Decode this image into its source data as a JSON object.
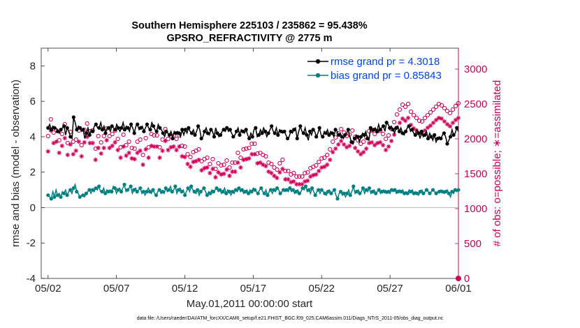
{
  "chart_data": {
    "type": "line",
    "title": "Southern Hemisphere 225103 / 235862 = 95.438%",
    "subtitle": "GPSRO_REFRACTIVITY @ 2775 m",
    "xlabel": "May.01,2011 00:00:00 start",
    "ylabel_left": "rmse and bias (model - observation)",
    "ylabel_right": "# of obs: o=possible; ∗=assimilated",
    "footnote": "data file: /Users/raeder/DAI/ATM_forcXX/CAM6_setup/f.e21.FHIST_BGC.f09_025.CAM6assim.011/Diags_NTrS_2011-05/obs_diag_output.nc",
    "x_ticks": [
      "05/02",
      "05/07",
      "05/12",
      "05/17",
      "05/22",
      "05/27",
      "06/01"
    ],
    "x_tick_days": [
      1,
      6,
      11,
      16,
      21,
      26,
      31
    ],
    "x_range_days": [
      0.5,
      31
    ],
    "ylim_left": [
      -4,
      9
    ],
    "y_ticks_left": [
      "-4",
      "-2",
      "0",
      "2",
      "4",
      "6",
      "8"
    ],
    "ylim_right": [
      0,
      3300
    ],
    "y_ticks_right": [
      "0",
      "500",
      "1000",
      "1500",
      "2000",
      "2500",
      "3000"
    ],
    "zero_line": 0,
    "legend_position": "top-right",
    "colors": {
      "rmse": "#000000",
      "bias": "#008080",
      "counts": "#cc0055",
      "legend_text": "#0044ee",
      "zero_line": "#c0c0c0"
    },
    "series": [
      {
        "name": "rmse grand pr = 4.3018",
        "axis": "left",
        "marker": "filled-circle",
        "values": [
          4.5,
          4.7,
          4.4,
          4.6,
          4.5,
          4.5,
          4.3,
          4.2,
          4.4,
          4.5,
          4.6,
          4.1,
          4.5,
          4.3,
          4.0,
          3.9,
          5.1,
          4.8,
          4.4,
          4.6,
          4.5,
          4.3,
          4.4,
          3.9,
          4.2,
          4.5,
          4.1,
          4.4,
          4.3,
          4.6,
          4.7,
          4.5,
          4.5,
          4.8,
          4.4,
          4.6,
          4.2,
          4.5,
          4.5,
          4.3,
          4.6,
          4.5,
          4.4,
          4.7,
          4.5,
          4.3,
          4.5,
          4.8,
          4.4,
          4.6,
          4.5,
          4.3,
          4.7,
          4.5,
          4.2,
          4.6,
          4.7,
          4.4,
          4.5,
          4.6,
          4.3,
          4.5,
          4.7,
          4.5,
          4.4,
          4.8,
          4.6,
          4.4,
          4.3,
          4.7,
          4.5,
          4.4,
          4.2,
          4.0,
          4.3,
          4.2,
          4.1,
          4.3,
          3.9,
          4.3,
          4.2,
          4.3,
          4.2,
          4.0,
          4.4,
          4.1,
          4.4,
          4.2,
          4.5,
          4.3,
          4.2,
          4.4,
          4.1,
          4.3,
          4.6,
          4.4,
          3.9,
          4.0,
          4.3,
          4.5,
          4.2,
          4.1,
          4.4,
          4.3,
          4.0,
          4.5,
          4.2,
          4.0,
          4.1,
          4.3,
          4.4,
          4.3,
          4.5,
          4.3,
          4.4,
          4.2,
          4.0,
          4.1,
          4.3,
          4.5,
          4.1,
          4.4,
          4.3,
          4.2,
          4.4,
          4.1,
          3.9,
          4.2,
          4.0,
          4.4,
          4.5,
          4.0,
          4.1,
          4.4,
          4.2,
          4.5,
          4.3,
          4.0,
          4.2,
          4.4,
          4.6,
          4.3,
          4.2,
          4.5,
          4.1,
          4.4,
          4.3,
          4.2,
          4.3,
          4.1,
          3.9,
          4.0,
          4.3,
          4.2,
          4.4,
          4.5,
          3.9,
          4.3,
          4.6,
          4.3,
          4.2,
          4.5,
          4.1,
          3.8,
          4.3,
          4.1,
          4.4,
          4.3,
          4.0,
          4.2,
          4.5,
          4.1,
          4.0,
          4.3,
          4.2,
          4.4,
          4.1,
          4.3,
          4.2,
          4.0,
          4.4,
          4.3,
          4.1,
          4.2,
          4.0,
          3.9,
          4.1,
          4.2,
          4.4,
          4.0,
          3.7,
          3.6,
          3.9,
          4.1,
          4.0,
          3.7,
          4.0,
          4.2,
          4.1,
          4.3,
          3.9,
          3.8,
          4.5,
          4.3,
          4.4,
          4.5,
          4.3,
          4.7,
          4.4,
          4.5,
          4.6,
          4.3,
          4.8,
          4.7,
          4.5,
          4.6,
          4.4,
          4.2,
          4.5,
          4.6,
          4.3,
          4.5,
          4.2,
          4.1,
          4.3,
          4.5,
          4.6,
          4.3,
          4.4,
          4.2,
          4.1,
          4.4,
          4.2,
          3.9,
          4.3,
          4.0,
          4.1,
          4.3,
          3.9,
          4.2,
          4.0,
          3.8,
          4.1,
          3.7,
          3.9,
          4.0,
          3.9,
          4.1,
          4.2,
          4.0,
          3.6,
          3.8,
          4.0,
          4.4,
          4.1,
          4.2,
          4.5,
          4.3
        ]
      },
      {
        "name": "bias grand pr = 0.85843",
        "axis": "left",
        "marker": "filled-circle",
        "values": [
          0.7,
          0.6,
          0.5,
          0.9,
          0.6,
          1.0,
          0.7,
          0.8,
          0.6,
          0.9,
          0.8,
          1.0,
          0.7,
          0.9,
          1.0,
          0.8,
          1.1,
          1.3,
          0.9,
          0.8,
          0.6,
          0.7,
          0.7,
          0.6,
          0.8,
          0.9,
          1.0,
          0.8,
          1.0,
          0.9,
          1.1,
          1.0,
          1.2,
          0.9,
          0.9,
          1.1,
          0.8,
          1.0,
          0.9,
          1.0,
          0.9,
          1.2,
          1.1,
          0.8,
          1.0,
          1.1,
          0.9,
          1.1,
          1.3,
          0.9,
          1.0,
          1.1,
          1.2,
          0.8,
          1.0,
          1.1,
          0.9,
          1.0,
          1.1,
          0.8,
          0.9,
          0.7,
          0.9,
          1.1,
          0.9,
          0.8,
          1.0,
          0.8,
          0.7,
          0.9,
          1.0,
          0.8,
          0.9,
          0.8,
          1.1,
          0.9,
          1.0,
          1.2,
          0.9,
          1.0,
          1.2,
          0.8,
          1.0,
          1.1,
          0.9,
          1.0,
          0.7,
          0.9,
          1.1,
          0.9,
          1.2,
          1.0,
          0.9,
          0.8,
          1.0,
          0.7,
          0.9,
          1.0,
          1.1,
          0.9,
          0.7,
          0.9,
          0.8,
          1.0,
          0.9,
          1.0,
          1.1,
          0.9,
          1.0,
          0.8,
          0.9,
          1.1,
          0.8,
          1.0,
          0.9,
          0.7,
          0.9,
          0.8,
          1.0,
          0.9,
          1.1,
          0.9,
          1.0,
          0.8,
          0.9,
          1.0,
          0.8,
          1.0,
          0.9,
          1.1,
          1.0,
          0.9,
          0.8,
          1.0,
          1.1,
          0.9,
          0.8,
          1.0,
          0.7,
          0.9,
          1.0,
          0.8,
          1.0,
          0.9,
          1.1,
          1.0,
          0.8,
          0.9,
          1.0,
          0.9,
          1.0,
          0.9,
          1.1,
          0.9,
          1.0,
          0.8,
          0.9,
          1.0,
          0.8,
          0.9,
          1.1,
          1.0,
          1.2,
          0.9,
          1.0,
          0.8,
          1.1,
          0.9,
          0.7,
          0.9,
          1.0,
          0.8,
          1.0,
          0.9,
          0.8,
          0.7,
          0.9,
          1.0,
          0.8,
          0.9,
          1.0,
          0.7,
          0.5,
          0.8,
          0.9,
          0.7,
          0.8,
          0.6,
          0.8,
          1.0,
          0.7,
          0.9,
          1.2,
          0.8,
          0.9,
          1.0,
          0.8,
          0.9,
          1.1,
          0.8,
          1.0,
          0.9,
          1.1,
          0.8,
          0.9,
          1.0,
          0.8,
          0.9,
          1.0,
          0.8,
          0.9,
          1.0,
          0.9,
          0.8,
          0.9,
          0.8,
          1.0,
          0.9,
          1.0,
          0.8,
          0.9,
          1.0,
          0.9,
          1.0,
          0.8,
          0.9,
          0.8,
          1.0,
          0.9,
          1.0,
          0.8,
          0.9,
          0.8,
          0.7,
          0.9,
          1.0,
          0.8,
          0.9,
          1.0,
          0.9,
          0.8,
          0.9,
          1.0,
          0.9,
          0.8,
          0.9,
          0.9,
          1.0,
          0.9,
          0.8,
          0.9,
          1.0,
          0.8,
          0.6,
          0.9,
          0.8,
          1.0,
          0.9,
          1.0
        ]
      }
    ],
    "count_series": [
      {
        "name": "possible",
        "axis": "right",
        "marker": "open-circle",
        "values": [
          2040,
          2090,
          2280,
          2200,
          2090,
          2190,
          2120,
          2080,
          1980,
          2160,
          2070,
          2180,
          2210,
          2010,
          1940,
          2260,
          2100,
          2080,
          1960,
          1950,
          1990,
          2170,
          2120,
          1860,
          1910,
          2080,
          2130,
          2190,
          2220,
          2270,
          2110,
          2080,
          2120,
          2180,
          1860,
          2010,
          2040,
          1920,
          1950,
          1870,
          2040,
          2190,
          2150,
          2110,
          2040,
          1980,
          2070,
          1940,
          2120,
          2000,
          2000,
          1880,
          1880,
          2150,
          2060,
          1990,
          1910,
          1850,
          1960,
          1830,
          1870,
          1920,
          1860,
          2010,
          1960,
          2100,
          1990,
          1810,
          1770,
          2150,
          2010,
          1900,
          1880,
          1770,
          2070,
          1820,
          2050,
          1780,
          2050,
          1960,
          1880,
          1950,
          1990,
          1990,
          2140,
          1930,
          2000,
          2220,
          2040,
          2050,
          2050,
          2000,
          2000,
          2010,
          2050,
          1970,
          1900,
          1750,
          1890,
          1810,
          1780,
          1780,
          1740,
          1820,
          1810,
          1800,
          1830,
          1780,
          1850,
          1760,
          1680,
          1700,
          1710,
          1700,
          1730,
          1680,
          1640,
          1640,
          1710,
          1590,
          1570,
          1590,
          1650,
          1550,
          1620,
          1600,
          1630,
          1560,
          1690,
          1600,
          1590,
          1640,
          1660,
          1690,
          1660,
          1770,
          1800,
          1770,
          1730,
          1770,
          1850,
          1930,
          1860,
          1950,
          1870,
          1900,
          1930,
          1900,
          1930,
          1900,
          1790,
          1760,
          1800,
          1720,
          1770,
          1810,
          1750,
          1750,
          1660,
          1690,
          1640,
          1690,
          1590,
          1600,
          1560,
          1600,
          1650,
          1620,
          1700,
          1590,
          1540,
          1560,
          1540,
          1520,
          1490,
          1470,
          1510,
          1470,
          1460,
          1460,
          1460,
          1450,
          1460,
          1520,
          1510,
          1500,
          1520,
          1530,
          1580,
          1540,
          1600,
          1660,
          1620,
          1700,
          1670,
          1620,
          1720,
          1690,
          1730,
          1780,
          1770,
          1800,
          1850,
          1910,
          1960,
          1990,
          2020,
          2050,
          2080,
          2100,
          2140,
          2130,
          2090,
          2060,
          2040,
          2100,
          2060,
          2090,
          2120,
          2080,
          2030,
          2000,
          1980,
          1960,
          1930,
          1920,
          1960,
          1990,
          2020,
          2050,
          2110,
          2140,
          2120,
          2090,
          2070,
          2080,
          2110,
          2150,
          2120,
          2090,
          2070,
          2040,
          2000,
          2010,
          2050,
          2090,
          2140,
          2190,
          2240,
          2280,
          2350,
          2380,
          2420,
          2460,
          2490,
          2430,
          2460,
          2470,
          2500,
          2440,
          2390,
          2360,
          2340,
          2330,
          2300,
          2280,
          2260,
          2240,
          2250,
          2280,
          2300,
          2320,
          2340,
          2360,
          2380,
          2400,
          2420,
          2440,
          2460,
          2480,
          2500,
          2510,
          2480,
          2460,
          2440,
          2420,
          2400,
          2380,
          2370,
          2390,
          2420,
          2450,
          2470,
          2490,
          2510
        ]
      },
      {
        "name": "assimilated",
        "axis": "right",
        "marker": "asterisk",
        "values": [
          1820,
          1900,
          2120,
          2010,
          1940,
          1990,
          1960,
          1910,
          1800,
          1960,
          1900,
          1990,
          2010,
          1840,
          1770,
          2060,
          1920,
          1900,
          1780,
          1790,
          1830,
          1980,
          1960,
          1700,
          1750,
          1910,
          1950,
          2010,
          2030,
          2070,
          1940,
          1910,
          1940,
          2000,
          1700,
          1840,
          1870,
          1760,
          1790,
          1710,
          1870,
          2010,
          1980,
          1940,
          1870,
          1810,
          1900,
          1780,
          1950,
          1830,
          1840,
          1730,
          1730,
          1980,
          1890,
          1830,
          1760,
          1700,
          1800,
          1680,
          1720,
          1760,
          1710,
          1850,
          1800,
          1930,
          1830,
          1670,
          1630,
          1980,
          1850,
          1750,
          1730,
          1630,
          1900,
          1680,
          1890,
          1640,
          1890,
          1800,
          1730,
          1790,
          1830,
          1830,
          1970,
          1770,
          1840,
          2040,
          1880,
          1890,
          1890,
          1840,
          1840,
          1850,
          1890,
          1810,
          1750,
          1610,
          1740,
          1670,
          1640,
          1640,
          1600,
          1680,
          1670,
          1650,
          1680,
          1640,
          1700,
          1620,
          1550,
          1570,
          1580,
          1570,
          1590,
          1550,
          1510,
          1510,
          1570,
          1470,
          1450,
          1470,
          1520,
          1430,
          1490,
          1480,
          1500,
          1440,
          1560,
          1480,
          1470,
          1510,
          1530,
          1560,
          1530,
          1630,
          1660,
          1630,
          1590,
          1630,
          1700,
          1780,
          1710,
          1790,
          1720,
          1750,
          1780,
          1750,
          1780,
          1750,
          1650,
          1620,
          1660,
          1590,
          1630,
          1670,
          1610,
          1610,
          1530,
          1560,
          1510,
          1560,
          1470,
          1480,
          1440,
          1480,
          1520,
          1490,
          1570,
          1470,
          1420,
          1440,
          1420,
          1400,
          1380,
          1360,
          1390,
          1360,
          1350,
          1350,
          1350,
          1340,
          1350,
          1400,
          1390,
          1380,
          1400,
          1410,
          1460,
          1420,
          1480,
          1530,
          1490,
          1570,
          1540,
          1490,
          1590,
          1560,
          1600,
          1640,
          1630,
          1660,
          1700,
          1760,
          1810,
          1830,
          1860,
          1890,
          1920,
          1940,
          1970,
          1960,
          1920,
          1900,
          1880,
          1940,
          1900,
          1930,
          1950,
          1920,
          1870,
          1840,
          1820,
          1810,
          1780,
          1770,
          1810,
          1830,
          1860,
          1890,
          1940,
          1970,
          1950,
          1920,
          1910,
          1920,
          1940,
          1980,
          1950,
          1920,
          1910,
          1880,
          1840,
          1850,
          1890,
          1920,
          1970,
          2020,
          2060,
          2100,
          2160,
          2190,
          2230,
          2260,
          2290,
          2240,
          2260,
          2270,
          2300,
          2250,
          2200,
          2170,
          2150,
          2140,
          2120,
          2100,
          2080,
          2060,
          2070,
          2100,
          2120,
          2140,
          2160,
          2170,
          2190,
          2210,
          2230,
          2250,
          2270,
          2290,
          2300,
          2310,
          2290,
          2270,
          2250,
          2230,
          2210,
          2190,
          2180,
          2200,
          2230,
          2250,
          2270,
          2290,
          2300
        ]
      }
    ]
  }
}
